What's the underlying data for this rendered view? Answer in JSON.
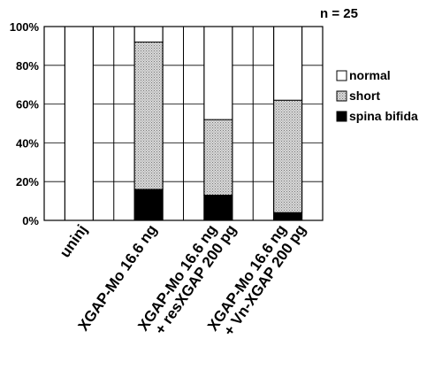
{
  "chart_data": {
    "type": "bar",
    "stacked": true,
    "percent": true,
    "annotation": "n = 25",
    "categories": [
      [
        "uninj"
      ],
      [
        "XGAP-Mo 16.6 ng"
      ],
      [
        "XGAP-Mo 16.6 ng",
        "+ resXGAP 200 pg"
      ],
      [
        "XGAP-Mo 16.6 ng",
        "+ Vn-XGAP 200 pg"
      ]
    ],
    "series": [
      {
        "name": "spina bifida",
        "values": [
          0,
          16,
          13,
          4
        ],
        "fill": "solid-black"
      },
      {
        "name": "short",
        "values": [
          0,
          76,
          39,
          58
        ],
        "fill": "gray-stipple"
      },
      {
        "name": "normal",
        "values": [
          100,
          8,
          48,
          38
        ],
        "fill": "white"
      }
    ],
    "yticks": [
      "0%",
      "20%",
      "40%",
      "60%",
      "80%",
      "100%"
    ],
    "ylim": [
      0,
      100
    ],
    "grid": true,
    "legend": {
      "position": "right",
      "order": [
        "normal",
        "short",
        "spina bifida"
      ]
    },
    "colors": {
      "spina_bifida": "#000000",
      "short": "#c8c8c8",
      "normal": "#ffffff"
    }
  }
}
